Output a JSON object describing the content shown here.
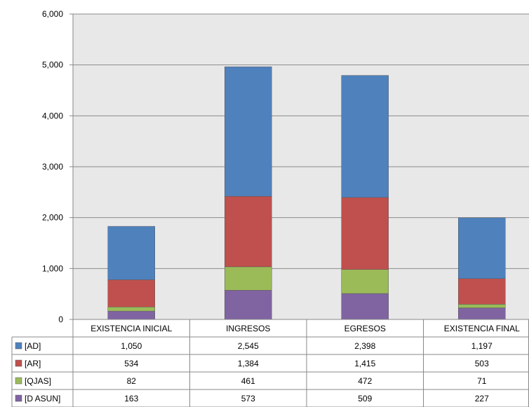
{
  "chart_data": {
    "type": "bar",
    "stacked": true,
    "categories": [
      "EXISTENCIA INICIAL",
      "INGRESOS",
      "EGRESOS",
      "EXISTENCIA FINAL"
    ],
    "series": [
      {
        "name": "[D ASUN]",
        "color": "#8064A2",
        "values": [
          163,
          573,
          509,
          227
        ]
      },
      {
        "name": "[QJAS]",
        "color": "#9BBB59",
        "values": [
          82,
          461,
          472,
          71
        ]
      },
      {
        "name": "[AR]",
        "color": "#C0504D",
        "values": [
          534,
          1384,
          1415,
          503
        ]
      },
      {
        "name": "[AD]",
        "color": "#4F81BD",
        "values": [
          1050,
          2545,
          2398,
          1197
        ]
      }
    ],
    "table_rows": [
      {
        "label": "[AD]",
        "color": "#4F81BD",
        "cells": [
          "1,050",
          "2,545",
          "2,398",
          "1,197"
        ]
      },
      {
        "label": "[AR]",
        "color": "#C0504D",
        "cells": [
          "534",
          "1,384",
          "1,415",
          "503"
        ]
      },
      {
        "label": "[QJAS]",
        "color": "#9BBB59",
        "cells": [
          "82",
          "461",
          "472",
          "71"
        ]
      },
      {
        "label": "[D ASUN]",
        "color": "#8064A2",
        "cells": [
          "163",
          "573",
          "509",
          "227"
        ]
      }
    ],
    "ylim": [
      0,
      6000
    ],
    "yticks": [
      "0",
      "1,000",
      "2,000",
      "3,000",
      "4,000",
      "5,000",
      "6,000"
    ],
    "grid": true,
    "plot_background": "#E8E8E8",
    "legend": "data-table-left"
  }
}
